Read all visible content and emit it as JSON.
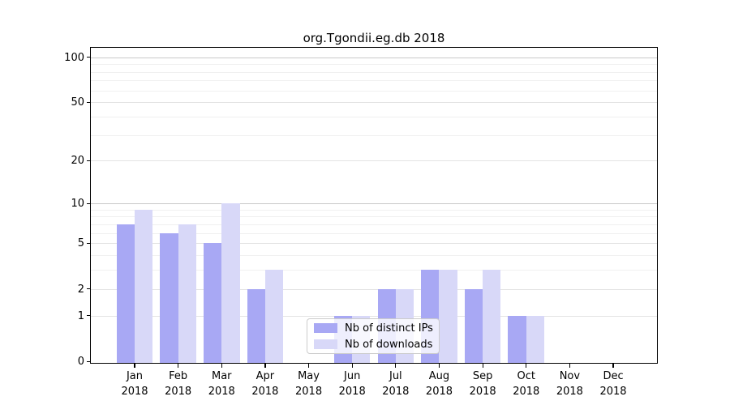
{
  "figure": {
    "title": "org.Tgondii.eg.db 2018"
  },
  "legend": {
    "items": [
      {
        "label": "Nb of distinct IPs"
      },
      {
        "label": "Nb of downloads"
      }
    ]
  },
  "colors": {
    "distinct_ips_bar": "#a8a8f4",
    "downloads_bar": "#d8d8f8",
    "grid_decade": "#c9c9c9",
    "grid_labeled": "#e3e3e3",
    "grid_minor": "#f0f0f0",
    "axis": "#000000"
  },
  "chart_data": {
    "type": "bar",
    "title": "org.Tgondii.eg.db 2018",
    "categories": [
      "Jan 2018",
      "Feb 2018",
      "Mar 2018",
      "Apr 2018",
      "May 2018",
      "Jun 2018",
      "Jul 2018",
      "Aug 2018",
      "Sep 2018",
      "Oct 2018",
      "Nov 2018",
      "Dec 2018"
    ],
    "series": [
      {
        "name": "Nb of distinct IPs",
        "color": "#a8a8f4",
        "values": [
          7,
          6,
          5,
          2,
          0,
          1,
          2,
          3,
          2,
          1,
          0,
          0
        ]
      },
      {
        "name": "Nb of downloads",
        "color": "#d8d8f8",
        "values": [
          9,
          7,
          10,
          3,
          0,
          1,
          2,
          3,
          3,
          1,
          0,
          0
        ]
      }
    ],
    "xlabel": "",
    "ylabel": "",
    "yscale": "log1p",
    "ylim": [
      0,
      100
    ],
    "yticks": [
      0,
      1,
      2,
      5,
      10,
      20,
      50,
      100
    ],
    "minor_gridlines": [
      3,
      4,
      6,
      7,
      8,
      9,
      30,
      40,
      60,
      70,
      80,
      90
    ],
    "grid": true,
    "legend_position": "lower center"
  }
}
